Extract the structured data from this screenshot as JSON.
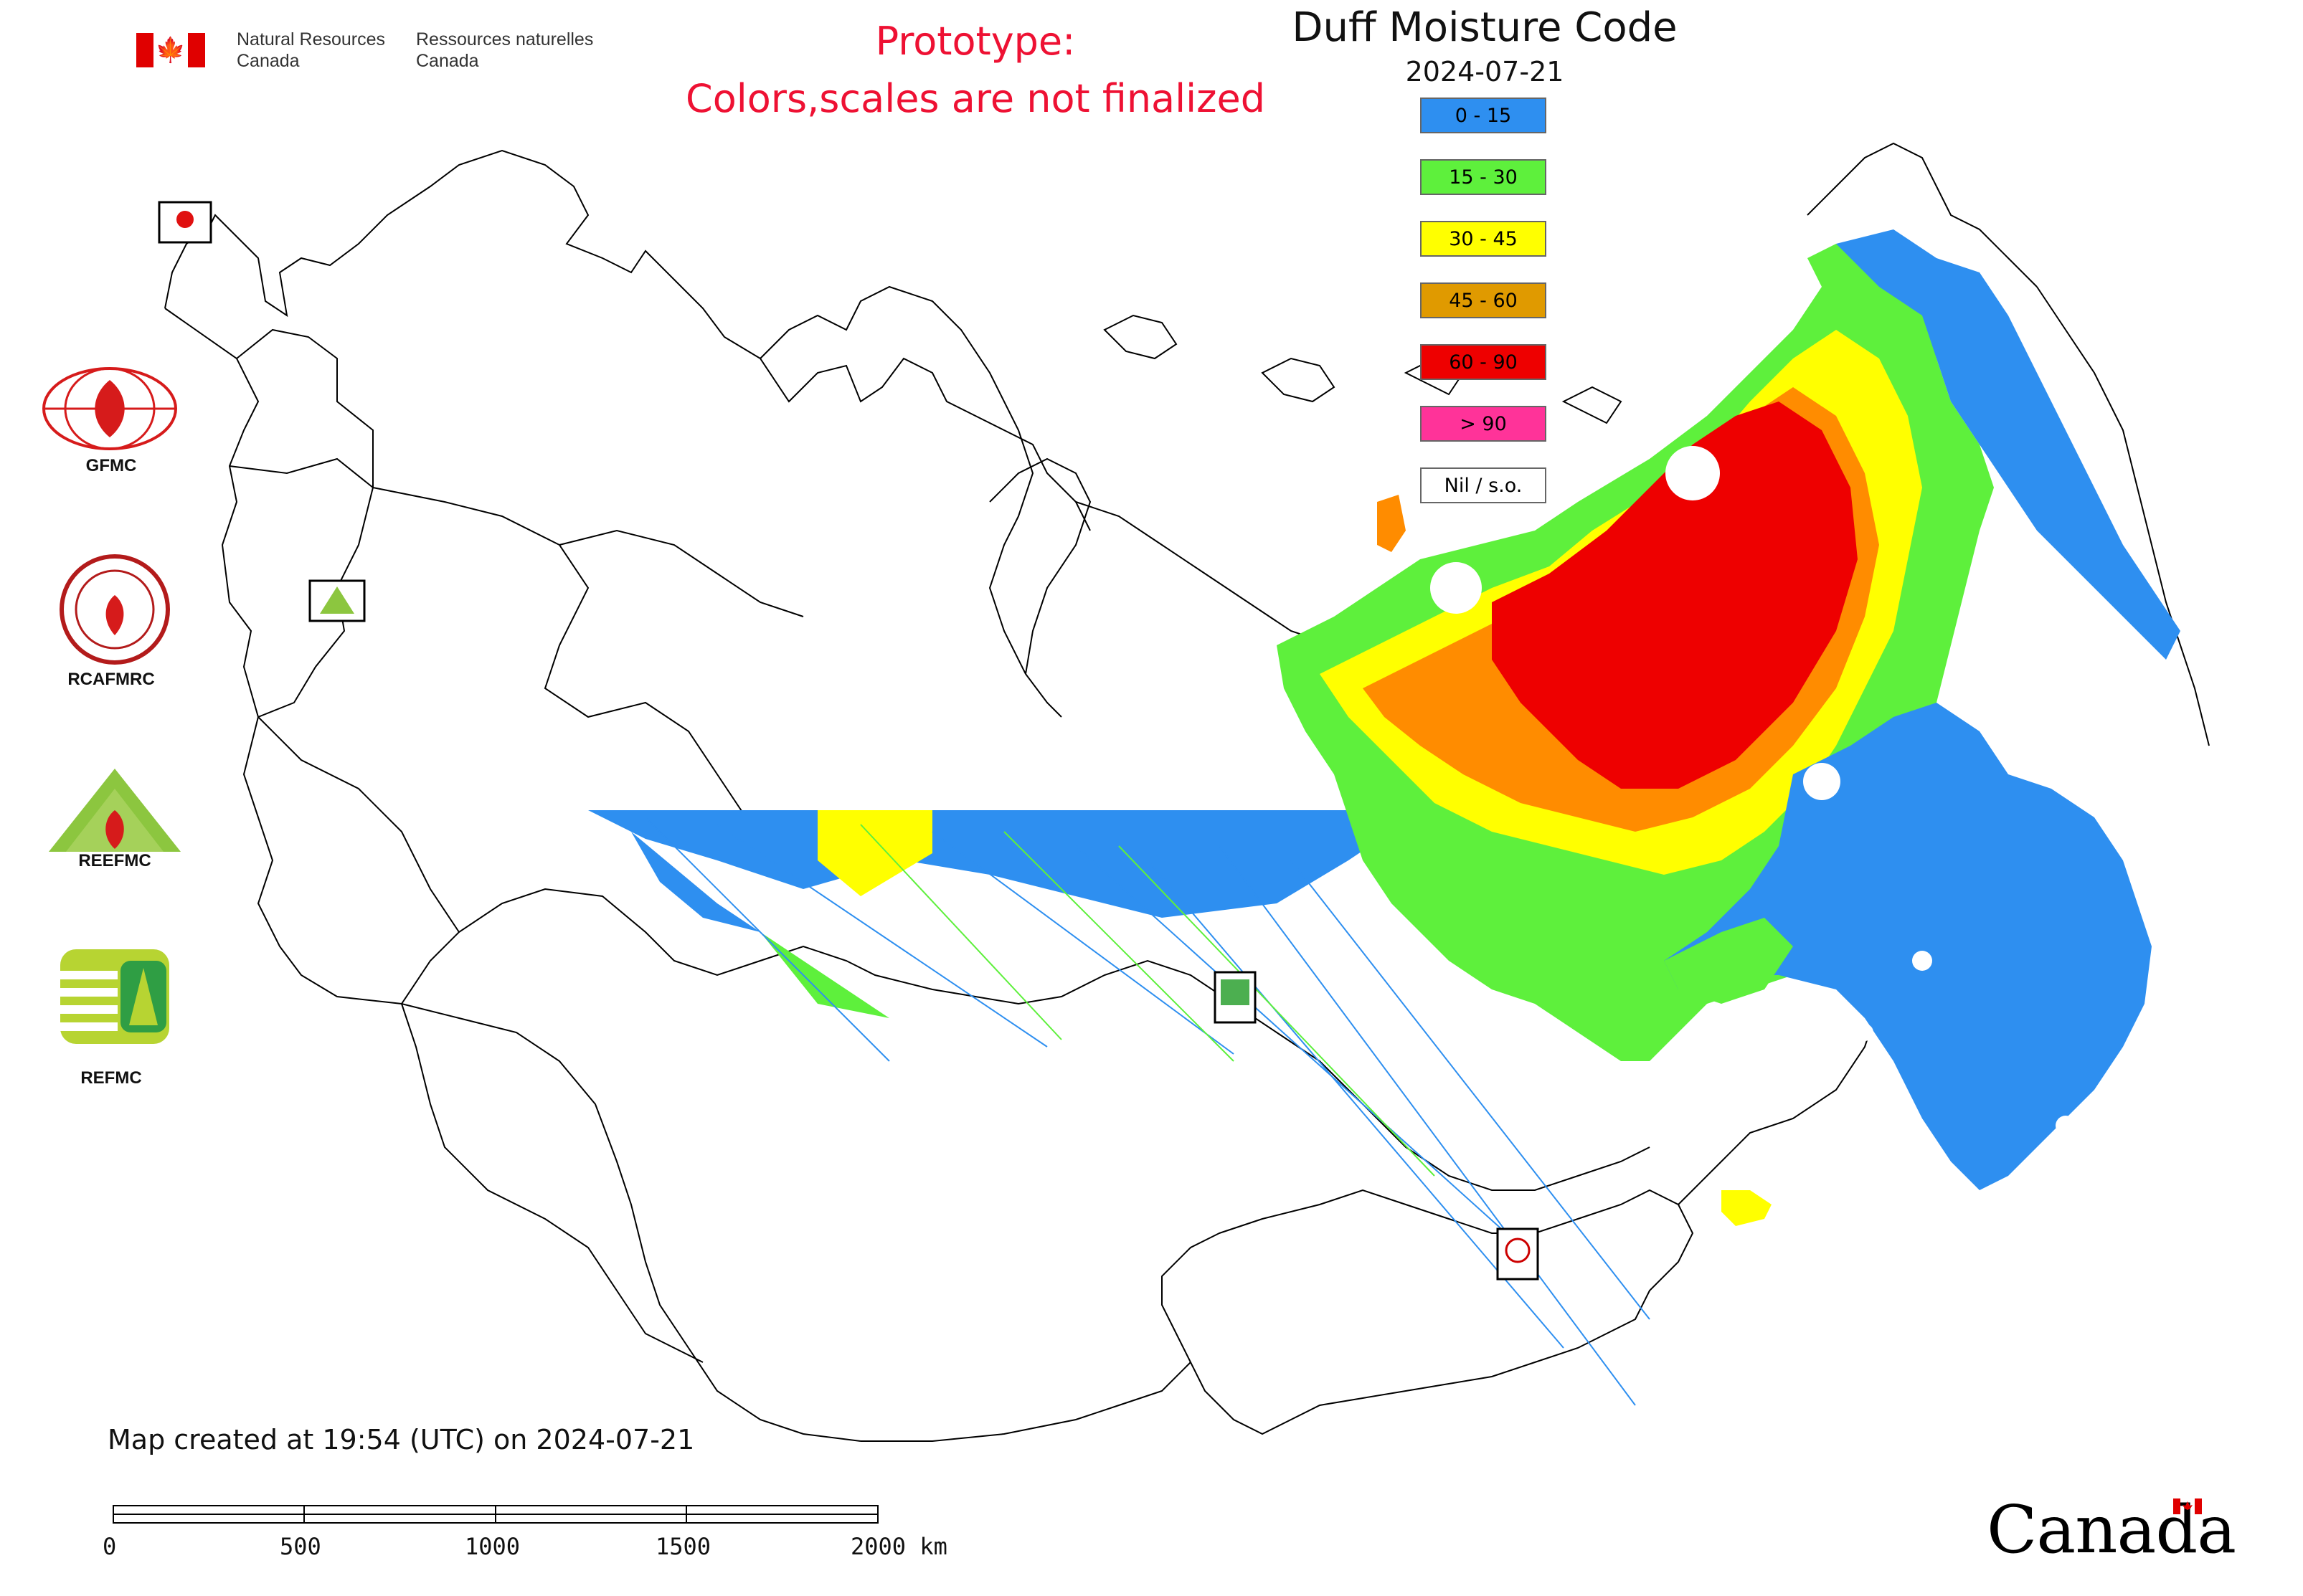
{
  "header": {
    "dept_en": "Natural Resources\nCanada",
    "dept_fr": "Ressources naturelles\nCanada"
  },
  "prototype_notice": [
    "Prototype:",
    "Colors,scales are not finalized"
  ],
  "map": {
    "title": "Duff Moisture Code",
    "date": "2024-07-21",
    "created_note": "Map created at 19:54 (UTC) on 2024-07-21"
  },
  "legend": [
    {
      "label": "0 - 15",
      "color": "#2e8ff0"
    },
    {
      "label": "15 - 30",
      "color": "#5ef03c"
    },
    {
      "label": "30 - 45",
      "color": "#ffff00"
    },
    {
      "label": "45 - 60",
      "color": "#e09a00"
    },
    {
      "label": "60 - 90",
      "color": "#ee0000"
    },
    {
      "label": "> 90",
      "color": "#ff3399"
    },
    {
      "label": "Nil / s.o.",
      "color": "#ffffff"
    }
  ],
  "organizations": {
    "gfmc": "GFMC",
    "rcafmrc": "RCAFMRC",
    "reefmc": "REEFMC",
    "refmc": "REFMC"
  },
  "scalebar": {
    "ticks": [
      "0",
      "500",
      "1000",
      "1500",
      "2000 km"
    ]
  },
  "footer": {
    "wordmark": "Canada"
  }
}
